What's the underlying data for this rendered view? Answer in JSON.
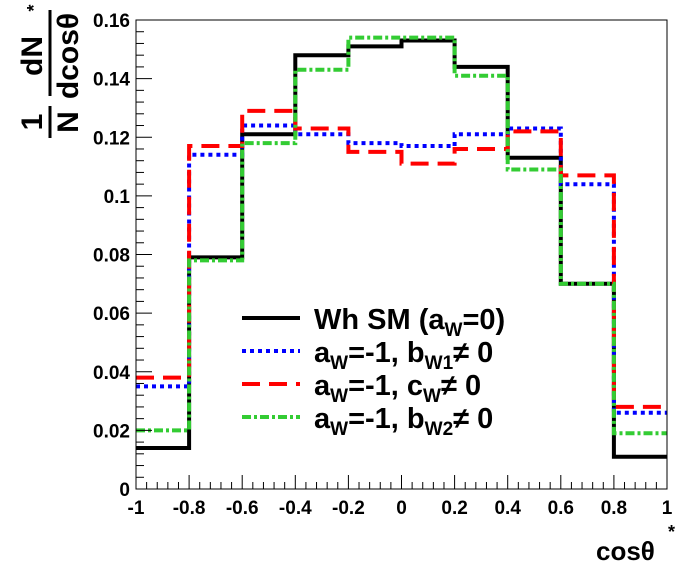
{
  "chart_data": {
    "type": "line",
    "style": "step-histogram",
    "title": "",
    "xlabel": "cosθ*",
    "ylabel": "1/N dN/dcosθ*",
    "xlim": [
      -1,
      1
    ],
    "ylim": [
      0,
      0.16
    ],
    "xticks": [
      "-1",
      "-0.8",
      "-0.6",
      "-0.4",
      "-0.2",
      "0",
      "0.2",
      "0.4",
      "0.6",
      "0.8",
      "1"
    ],
    "yticks": [
      "0",
      "0.02",
      "0.04",
      "0.06",
      "0.08",
      "0.1",
      "0.12",
      "0.14",
      "0.16"
    ],
    "bin_edges": [
      -1.0,
      -0.8,
      -0.6,
      -0.4,
      -0.2,
      0.0,
      0.2,
      0.4,
      0.6,
      0.8,
      1.0
    ],
    "legend_position": "bottom-center",
    "series": [
      {
        "name": "Wh SM (aW=0)",
        "label_parts": [
          "Wh SM (a",
          "W",
          "=0)"
        ],
        "color": "#000000",
        "dash": "solid",
        "values": [
          0.014,
          0.079,
          0.121,
          0.148,
          0.151,
          0.153,
          0.144,
          0.113,
          0.07,
          0.011
        ]
      },
      {
        "name": "aW=-1, bW1≠0",
        "label_parts": [
          "a",
          "W",
          "=-1, b",
          "W1",
          "≠ 0"
        ],
        "color": "#0000ff",
        "dash": "dotted",
        "values": [
          0.035,
          0.114,
          0.124,
          0.121,
          0.118,
          0.117,
          0.121,
          0.123,
          0.104,
          0.026
        ]
      },
      {
        "name": "aW=-1, cW≠0",
        "label_parts": [
          "a",
          "W",
          "=-1, c",
          "W",
          "≠ 0"
        ],
        "color": "#ff0000",
        "dash": "dashed",
        "values": [
          0.038,
          0.117,
          0.129,
          0.123,
          0.115,
          0.111,
          0.116,
          0.122,
          0.107,
          0.028
        ]
      },
      {
        "name": "aW=-1, bW2≠0",
        "label_parts": [
          "a",
          "W",
          "=-1, b",
          "W2",
          "≠ 0"
        ],
        "color": "#33cc33",
        "dash": "dashdot",
        "values": [
          0.02,
          0.078,
          0.118,
          0.143,
          0.154,
          0.154,
          0.141,
          0.109,
          0.07,
          0.019
        ]
      }
    ]
  }
}
